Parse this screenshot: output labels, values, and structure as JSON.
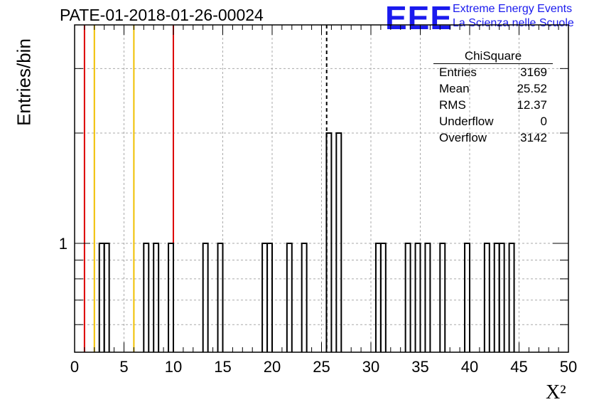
{
  "title": "PATE-01-2018-01-26-00024",
  "logo": {
    "mark": "EEE",
    "line1": "Extreme Energy Events",
    "line2": "La Scienza nelle Scuole"
  },
  "stats": {
    "name": "ChiSquare",
    "rows": [
      {
        "label": "Entries",
        "value": "3169"
      },
      {
        "label": "Mean",
        "value": "25.52"
      },
      {
        "label": "RMS",
        "value": "12.37"
      },
      {
        "label": "Underflow",
        "value": "0"
      },
      {
        "label": "Overflow",
        "value": "3142"
      }
    ]
  },
  "chart_data": {
    "type": "bar",
    "title": "PATE-01-2018-01-26-00024",
    "xlabel": "X²",
    "ylabel": "Entries/bin",
    "xlim": [
      0,
      50
    ],
    "ylog": true,
    "ylim": [
      0.4,
      7.5
    ],
    "bin_width": 0.5,
    "x_ticks": [
      "0",
      "5",
      "10",
      "15",
      "20",
      "25",
      "30",
      "35",
      "40",
      "45",
      "50"
    ],
    "y_ticks": [
      "1"
    ],
    "grid": true,
    "bins": [
      {
        "x": 2.5,
        "count": 1
      },
      {
        "x": 3.0,
        "count": 1
      },
      {
        "x": 7.0,
        "count": 1
      },
      {
        "x": 8.0,
        "count": 1
      },
      {
        "x": 9.5,
        "count": 1
      },
      {
        "x": 13.0,
        "count": 1
      },
      {
        "x": 14.5,
        "count": 1
      },
      {
        "x": 19.0,
        "count": 1
      },
      {
        "x": 19.5,
        "count": 1
      },
      {
        "x": 21.5,
        "count": 1
      },
      {
        "x": 23.0,
        "count": 1
      },
      {
        "x": 25.5,
        "count": 2
      },
      {
        "x": 26.5,
        "count": 2
      },
      {
        "x": 30.5,
        "count": 1
      },
      {
        "x": 31.0,
        "count": 1
      },
      {
        "x": 33.5,
        "count": 1
      },
      {
        "x": 34.5,
        "count": 1
      },
      {
        "x": 35.5,
        "count": 1
      },
      {
        "x": 37.0,
        "count": 1
      },
      {
        "x": 39.5,
        "count": 1
      },
      {
        "x": 41.5,
        "count": 1
      },
      {
        "x": 42.5,
        "count": 1
      },
      {
        "x": 43.0,
        "count": 1
      },
      {
        "x": 44.0,
        "count": 1
      }
    ],
    "vlines": [
      {
        "x": 1,
        "color": "#dd0000",
        "style": "solid"
      },
      {
        "x": 2,
        "color": "#f0c000",
        "style": "solid"
      },
      {
        "x": 6,
        "color": "#f0c000",
        "style": "solid"
      },
      {
        "x": 10,
        "color": "#dd0000",
        "style": "solid"
      },
      {
        "x": 25.52,
        "color": "#000000",
        "style": "dashed"
      }
    ]
  }
}
